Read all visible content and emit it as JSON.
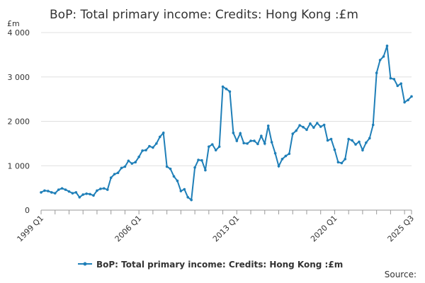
{
  "chart_data": {
    "type": "line",
    "title": "BoP: Total primary income: Credits: Hong Kong :£m",
    "y_unit": "£m",
    "source": "Source:",
    "categories": [
      "1999 Q1",
      null,
      null,
      null,
      null,
      null,
      null,
      null,
      null,
      null,
      null,
      null,
      null,
      null,
      null,
      null,
      null,
      null,
      null,
      null,
      null,
      null,
      null,
      null,
      null,
      null,
      null,
      null,
      "2006 Q1",
      null,
      null,
      null,
      null,
      null,
      null,
      null,
      null,
      null,
      null,
      null,
      null,
      null,
      null,
      null,
      null,
      null,
      null,
      null,
      null,
      null,
      null,
      null,
      null,
      null,
      null,
      null,
      "2013 Q1",
      null,
      null,
      null,
      null,
      null,
      null,
      null,
      null,
      null,
      null,
      null,
      null,
      null,
      null,
      null,
      null,
      null,
      null,
      null,
      null,
      null,
      null,
      null,
      null,
      null,
      null,
      null,
      "2020 Q1",
      null,
      null,
      null,
      null,
      null,
      null,
      null,
      null,
      null,
      null,
      null,
      null,
      null,
      null,
      null,
      null,
      null,
      null,
      null,
      null,
      null,
      "2025 Q3"
    ],
    "series": [
      {
        "name": "BoP: Total primary income: Credits: Hong Kong :£m",
        "color": "#1f7fb8",
        "values": [
          400,
          440,
          430,
          400,
          380,
          460,
          490,
          460,
          420,
          380,
          400,
          290,
          350,
          370,
          360,
          330,
          440,
          480,
          490,
          460,
          730,
          810,
          840,
          950,
          980,
          1110,
          1050,
          1080,
          1200,
          1340,
          1350,
          1440,
          1410,
          1500,
          1650,
          1740,
          980,
          930,
          760,
          660,
          430,
          470,
          290,
          230,
          960,
          1130,
          1120,
          900,
          1430,
          1480,
          1350,
          1430,
          2780,
          2730,
          2670,
          1740,
          1560,
          1730,
          1510,
          1500,
          1560,
          1560,
          1490,
          1670,
          1500,
          1900,
          1530,
          1280,
          990,
          1150,
          1220,
          1270,
          1720,
          1790,
          1910,
          1870,
          1810,
          1950,
          1860,
          1960,
          1880,
          1920,
          1570,
          1600,
          1360,
          1080,
          1060,
          1150,
          1600,
          1570,
          1480,
          1540,
          1350,
          1520,
          1620,
          1920,
          3090,
          3380,
          3460,
          3700,
          2970,
          2950,
          2800,
          2850,
          2430,
          2480,
          2560
        ]
      }
    ],
    "ylim": [
      0,
      4000
    ],
    "yticks": [
      0,
      {
        "value": 1000,
        "label": "1 000"
      },
      {
        "value": 2000,
        "label": "2 000"
      },
      {
        "value": 3000,
        "label": "3 000"
      },
      {
        "value": 4000,
        "label": "4 000"
      }
    ],
    "grid": true
  }
}
